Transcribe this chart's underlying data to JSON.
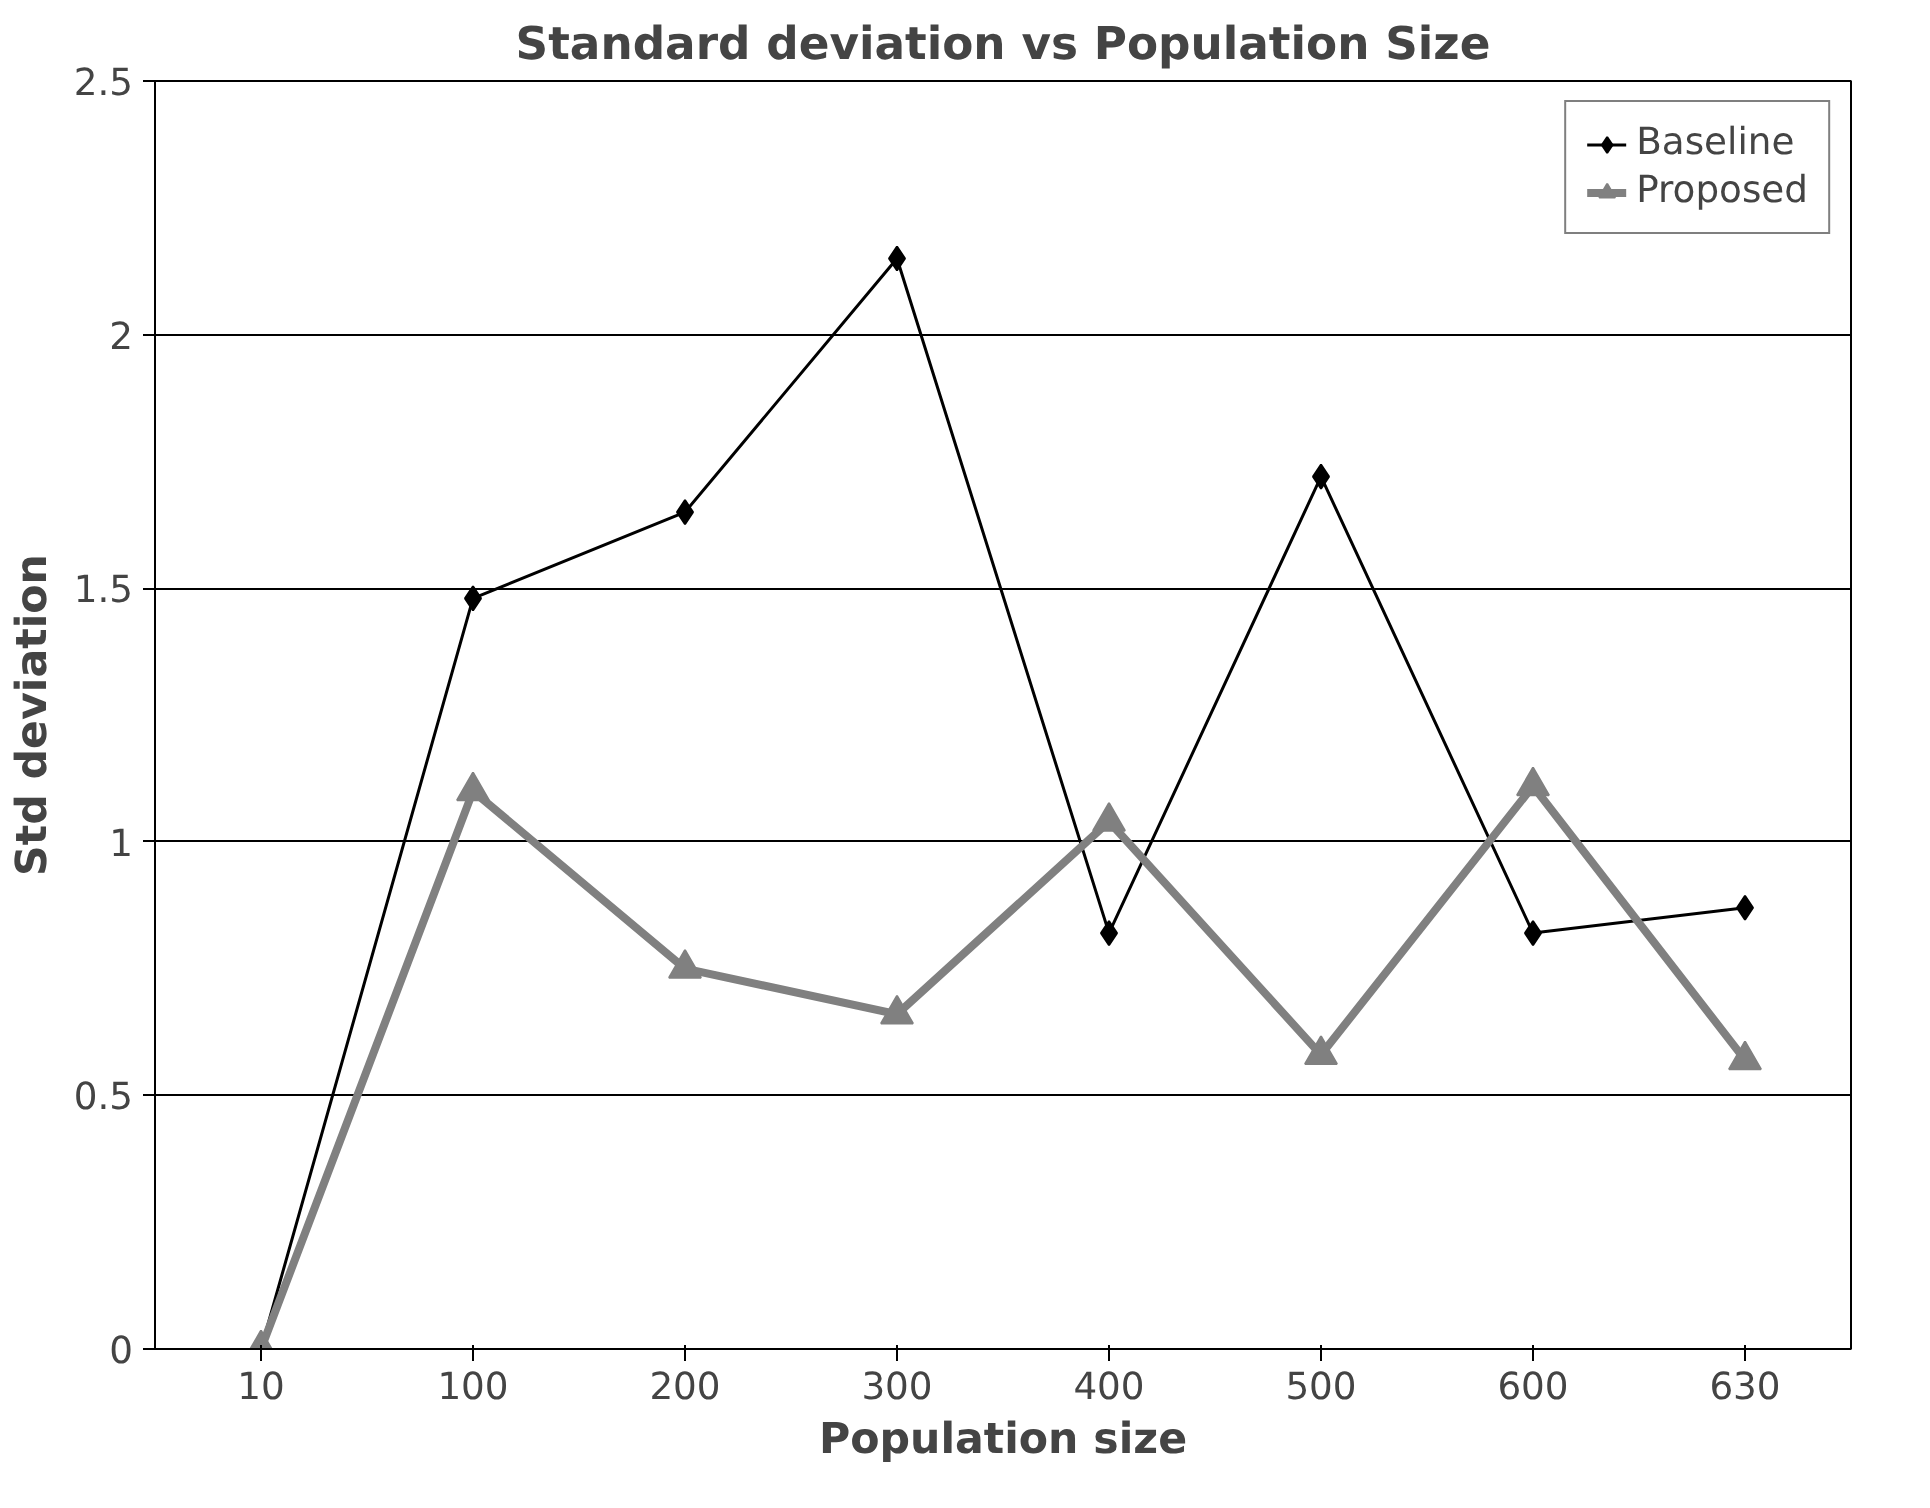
{
  "chart_data": {
    "type": "line",
    "title": "Standard deviation vs Population Size",
    "xlabel": "Population size",
    "ylabel": "Std deviation",
    "categories": [
      "10",
      "100",
      "200",
      "300",
      "400",
      "500",
      "600",
      "630"
    ],
    "series": [
      {
        "name": "Baseline",
        "color": "#000000",
        "marker": "diamond",
        "values": [
          0,
          1.48,
          1.65,
          2.15,
          0.82,
          1.72,
          0.82,
          0.87
        ]
      },
      {
        "name": "Proposed",
        "color": "#808080",
        "marker": "triangle",
        "values": [
          0,
          1.1,
          0.75,
          0.66,
          1.04,
          0.58,
          1.11,
          0.57
        ]
      }
    ],
    "ylim": [
      0,
      2.5
    ],
    "yticks": [
      0,
      0.5,
      1,
      1.5,
      2,
      2.5
    ],
    "grid": "y",
    "legend": "top right",
    "line_style": "solid"
  }
}
